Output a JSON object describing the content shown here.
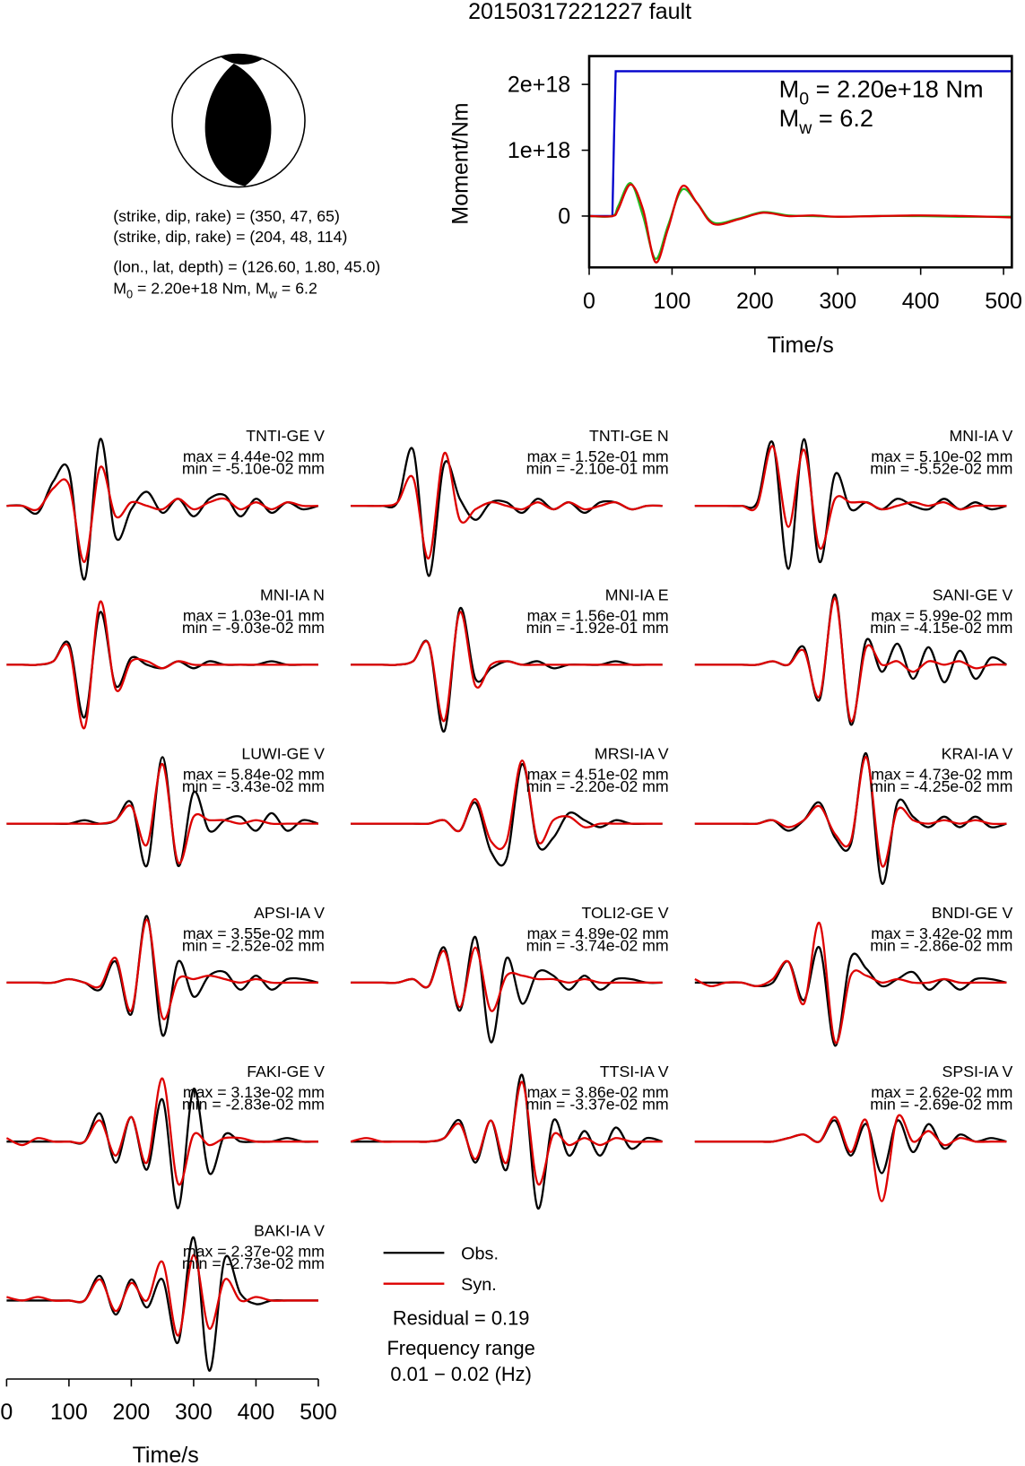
{
  "title": "20150317221227 fault",
  "mechanism_text": [
    "(strike, dip, rake) = (350, 47, 65)",
    "(strike, dip, rake) = (204, 48, 114)",
    "(lon., lat, depth) = (126.60, 1.80, 45.0)"
  ],
  "moment_text": [
    {
      "text": "M"
    },
    {
      "text": "0",
      "sub": true
    },
    {
      "text": " = 2.20e+18 Nm, M"
    },
    {
      "text": "w",
      "sub": true
    },
    {
      "text": " = 6.2"
    }
  ],
  "chart_data": [
    {
      "type": "line",
      "xlabel": "Time/s",
      "ylabel": "Moment/Nm",
      "xlim": [
        0,
        510
      ],
      "ylim": [
        -7.8e+17,
        2.43e+18
      ],
      "xticks": [
        0,
        100,
        200,
        300,
        400,
        500
      ],
      "yticks": [
        0,
        {
          "value": 1e+18,
          "label": "1e+18"
        },
        {
          "value": 2e+18,
          "label": "2e+18"
        }
      ],
      "annotations": [
        [
          {
            "text": "M"
          },
          {
            "text": "0",
            "sub": true
          },
          {
            "text": " = 2.20e+18 Nm"
          }
        ],
        [
          {
            "text": "M"
          },
          {
            "text": "w",
            "sub": true
          },
          {
            "text": " = 6.2"
          }
        ]
      ],
      "series": [
        {
          "color": "#0000cc",
          "x": [
            0,
            28,
            30,
            32,
            510
          ],
          "values": [
            0,
            0,
            1.2e+18,
            2.2e+18,
            2.2e+18
          ]
        },
        {
          "color": "#22bb22",
          "x": [
            0,
            28,
            35,
            50,
            65,
            80,
            95,
            112,
            130,
            150,
            180,
            210,
            240,
            270,
            300,
            350,
            400,
            450,
            510
          ],
          "values": [
            0,
            0,
            1.5e+17,
            5e+17,
            0,
            -6.5e+17,
            -1.5e+17,
            4e+17,
            2e+17,
            -1e+17,
            -4e+16,
            6e+16,
            1e+16,
            0,
            -1e+16,
            0,
            0,
            -1e+16,
            -1e+16
          ]
        },
        {
          "color": "#dd0000",
          "x": [
            0,
            28,
            35,
            50,
            65,
            80,
            95,
            112,
            130,
            150,
            180,
            210,
            240,
            270,
            300,
            350,
            400,
            450,
            510
          ],
          "values": [
            0,
            0,
            1e+17,
            4.8e+17,
            1e+17,
            -7e+17,
            -2e+17,
            4.5e+17,
            2e+17,
            -1.2e+17,
            -5e+16,
            5e+16,
            0,
            1e+16,
            -1e+16,
            0,
            1e+16,
            0,
            -2e+16
          ]
        }
      ]
    },
    {
      "type": "waveform",
      "xlabel": "Time/s",
      "xlim": [
        0,
        510
      ],
      "xticks": [
        0,
        100,
        200,
        300,
        400,
        500
      ],
      "x": [
        0,
        25,
        50,
        75,
        100,
        125,
        150,
        175,
        200,
        225,
        250,
        275,
        300,
        325,
        350,
        375,
        400,
        425,
        450,
        475,
        500
      ],
      "legend": [
        {
          "name": "Obs.",
          "color": "#000000"
        },
        {
          "name": "Syn.",
          "color": "#dd0000"
        }
      ],
      "residual": "Residual = 0.19",
      "frequency_range": [
        "Frequency range",
        "0.01 − 0.02 (Hz)"
      ],
      "panels": [
        {
          "title": "TNTI-GE V",
          "max": "max = 4.44e-02 mm",
          "min": "min = -5.10e-02 mm",
          "obs": [
            0,
            0,
            -0.1,
            0.35,
            0.5,
            -1.05,
            0.95,
            -0.45,
            -0.05,
            0.2,
            -0.1,
            0.1,
            -0.15,
            0.1,
            0.15,
            -0.15,
            0.1,
            -0.1,
            0.05,
            -0.05,
            0
          ],
          "syn": [
            0,
            0,
            -0.05,
            0.25,
            0.3,
            -0.8,
            0.55,
            -0.15,
            0.05,
            0,
            -0.05,
            0.1,
            -0.05,
            0.05,
            0.1,
            -0.05,
            0.05,
            -0.05,
            0.05,
            0,
            0
          ]
        },
        {
          "title": "TNTI-GE N",
          "max": "max = 1.52e-01 mm",
          "min": "min = -2.10e-01 mm",
          "obs": [
            0,
            0,
            0,
            0.05,
            0.8,
            -1.0,
            0.6,
            0.1,
            -0.2,
            0.05,
            0.05,
            -0.1,
            0.1,
            -0.05,
            0.05,
            -0.1,
            0.05,
            0.05,
            -0.05,
            0,
            0
          ],
          "syn": [
            0,
            0,
            0,
            0.05,
            0.4,
            -0.75,
            0.75,
            -0.2,
            -0.05,
            0.05,
            0,
            -0.05,
            0.05,
            -0.05,
            0.05,
            -0.05,
            0,
            0.05,
            -0.05,
            0,
            0
          ]
        },
        {
          "title": "MNI-IA V",
          "max": "max = 5.10e-02 mm",
          "min": "min = -5.52e-02 mm",
          "obs": [
            0,
            0,
            0,
            0,
            0.05,
            0.9,
            -0.9,
            0.95,
            -0.8,
            0.45,
            -0.05,
            0.05,
            -0.05,
            0.1,
            0,
            -0.05,
            0.1,
            -0.05,
            0.05,
            -0.05,
            0
          ],
          "syn": [
            0,
            0,
            0,
            0,
            0,
            0.85,
            -0.3,
            0.8,
            -0.6,
            0.1,
            0.05,
            0.05,
            -0.05,
            0,
            0.05,
            0,
            0.05,
            -0.05,
            0,
            0,
            0
          ]
        },
        {
          "title": "MNI-IA N",
          "max": "max = 1.03e-01 mm",
          "min": "min = -9.03e-02 mm",
          "obs": [
            0,
            0,
            0,
            0.05,
            0.3,
            -0.75,
            0.75,
            -0.3,
            0.1,
            0,
            -0.05,
            0.05,
            -0.05,
            0.05,
            0,
            0,
            0,
            0.05,
            0,
            0,
            0
          ],
          "syn": [
            0,
            0,
            0,
            0.05,
            0.25,
            -0.9,
            0.9,
            -0.35,
            0.05,
            0.05,
            -0.05,
            0.05,
            0,
            0,
            0,
            0,
            0,
            0,
            0,
            0,
            0
          ]
        },
        {
          "title": "MNI-IA E",
          "max": "max = 1.56e-01 mm",
          "min": "min = -1.92e-01 mm",
          "obs": [
            0,
            0,
            0,
            0,
            0.05,
            0.3,
            -0.95,
            0.8,
            -0.2,
            -0.05,
            0.05,
            0,
            0.05,
            -0.05,
            0,
            0,
            0,
            0.05,
            0,
            0,
            0
          ],
          "syn": [
            0,
            0,
            0,
            0,
            0.05,
            0.3,
            -0.8,
            0.75,
            -0.3,
            0,
            0.05,
            0,
            0,
            0,
            0,
            0,
            0,
            0,
            0,
            0,
            0
          ]
        },
        {
          "title": "SANI-GE V",
          "max": "max = 5.99e-02 mm",
          "min": "min = -4.15e-02 mm",
          "obs": [
            0,
            0,
            0,
            0,
            0,
            0.05,
            0,
            0.25,
            -0.5,
            1.0,
            -0.85,
            0.35,
            -0.1,
            0.3,
            -0.2,
            0.25,
            -0.25,
            0.2,
            -0.2,
            0.1,
            0
          ],
          "syn": [
            0,
            0,
            0,
            0,
            0,
            0.05,
            0,
            0.2,
            -0.45,
            0.95,
            -0.8,
            0.25,
            0,
            0.05,
            -0.1,
            0.05,
            0,
            0.05,
            -0.05,
            0,
            0
          ]
        },
        {
          "title": "LUWI-GE V",
          "max": "max = 5.84e-02 mm",
          "min": "min = -3.43e-02 mm",
          "obs": [
            0,
            0,
            0,
            0,
            0,
            0.05,
            0,
            0.05,
            0.3,
            -0.6,
            0.95,
            -0.6,
            0.45,
            -0.1,
            0.05,
            0.1,
            -0.1,
            0.15,
            -0.1,
            0.05,
            0
          ],
          "syn": [
            0,
            0,
            0,
            0,
            0,
            0,
            0,
            0.05,
            0.25,
            -0.3,
            0.85,
            -0.55,
            0.1,
            0.05,
            0.05,
            0,
            0.05,
            0,
            0,
            0,
            0
          ]
        },
        {
          "title": "MRSI-IA V",
          "max": "max = 4.51e-02 mm",
          "min": "min = -2.20e-02 mm",
          "obs": [
            0,
            0,
            0,
            0,
            0,
            0,
            0.05,
            -0.1,
            0.3,
            -0.4,
            -0.5,
            0.85,
            -0.3,
            -0.2,
            0.15,
            0.05,
            -0.05,
            0.05,
            0,
            0,
            0
          ],
          "syn": [
            0,
            0,
            0,
            0,
            0,
            0,
            0.05,
            -0.1,
            0.35,
            -0.25,
            -0.25,
            0.9,
            -0.25,
            0.05,
            0.1,
            -0.05,
            0,
            0,
            0,
            0,
            0
          ]
        },
        {
          "title": "KRAI-IA V",
          "max": "max = 4.73e-02 mm",
          "min": "min = -4.25e-02 mm",
          "obs": [
            0,
            0,
            0,
            0,
            0,
            0.05,
            -0.1,
            0.05,
            0.3,
            -0.2,
            -0.3,
            1.0,
            -0.85,
            0.3,
            0.1,
            -0.05,
            0.1,
            -0.05,
            0.1,
            -0.05,
            0
          ],
          "syn": [
            0,
            0,
            0,
            0,
            0,
            0.05,
            -0.05,
            0.05,
            0.25,
            -0.15,
            -0.25,
            0.95,
            -0.6,
            0.2,
            0.05,
            0,
            0.05,
            0,
            0.05,
            0,
            0
          ]
        },
        {
          "title": "APSI-IA V",
          "max": "max = 3.55e-02 mm",
          "min": "min = -2.52e-02 mm",
          "obs": [
            0,
            0,
            0,
            0,
            0.05,
            0,
            -0.1,
            0.3,
            -0.45,
            0.95,
            -0.75,
            0.3,
            -0.2,
            0.1,
            0.15,
            -0.1,
            0.1,
            -0.1,
            0.05,
            0.05,
            0
          ],
          "syn": [
            0,
            0,
            0,
            0,
            0.05,
            0,
            -0.05,
            0.35,
            -0.4,
            0.9,
            -0.5,
            0.05,
            0.05,
            0.1,
            0.05,
            0,
            0.05,
            0,
            0,
            0,
            0
          ]
        },
        {
          "title": "TOLI2-GE V",
          "max": "max = 4.89e-02 mm",
          "min": "min = -3.74e-02 mm",
          "obs": [
            0,
            0,
            0,
            0,
            0.05,
            -0.05,
            0.5,
            -0.4,
            0.65,
            -0.85,
            0.35,
            -0.3,
            0.15,
            0.1,
            -0.1,
            0.1,
            -0.1,
            0.05,
            0.05,
            0,
            0
          ],
          "syn": [
            0,
            0,
            0,
            0,
            0.05,
            -0.05,
            0.45,
            -0.35,
            0.5,
            -0.4,
            0.1,
            0.1,
            0.05,
            0.05,
            0,
            0.05,
            0,
            0,
            0,
            0,
            0
          ]
        },
        {
          "title": "BNDI-GE V",
          "max": "max = 3.42e-02 mm",
          "min": "min = -2.86e-02 mm",
          "obs": [
            0,
            0,
            0,
            0,
            -0.05,
            0,
            0.3,
            -0.25,
            0.5,
            -0.9,
            0.35,
            0.2,
            -0.05,
            0.05,
            0.15,
            -0.1,
            0.05,
            -0.1,
            0.05,
            0.05,
            0
          ],
          "syn": [
            0.05,
            -0.05,
            0,
            0,
            -0.05,
            0.05,
            0.3,
            -0.3,
            0.85,
            -0.85,
            0.1,
            0.1,
            0,
            0.05,
            0,
            0,
            0.05,
            0,
            0,
            0,
            0
          ]
        },
        {
          "title": "FAKI-GE V",
          "max": "max = 3.13e-02 mm",
          "min": "min = -2.83e-02 mm",
          "obs": [
            0,
            0,
            0,
            0,
            0,
            0,
            0.4,
            -0.3,
            0.35,
            -0.4,
            0.6,
            -0.95,
            0.75,
            -0.45,
            0.1,
            0,
            0,
            0,
            0.05,
            0,
            0
          ],
          "syn": [
            0.05,
            -0.05,
            0.05,
            0,
            0,
            0,
            0.3,
            -0.2,
            0.35,
            -0.3,
            0.9,
            -0.6,
            0.1,
            -0.05,
            0.05,
            0.05,
            0,
            0,
            0,
            0,
            0
          ]
        },
        {
          "title": "TTSI-IA V",
          "max": "max = 3.86e-02 mm",
          "min": "min = -3.37e-02 mm",
          "obs": [
            0,
            0,
            0,
            0,
            0,
            0,
            0.05,
            0.3,
            -0.3,
            0.3,
            -0.4,
            0.95,
            -0.95,
            0.3,
            -0.2,
            0.15,
            -0.2,
            0.2,
            -0.1,
            0.05,
            0
          ],
          "syn": [
            0,
            0.05,
            0,
            0,
            0,
            0,
            0.05,
            0.25,
            -0.25,
            0.3,
            -0.3,
            0.85,
            -0.6,
            0.1,
            -0.05,
            0.05,
            -0.05,
            0.05,
            0,
            0,
            0
          ]
        },
        {
          "title": "SPSI-IA V",
          "max": "max = 2.62e-02 mm",
          "min": "min = -2.69e-02 mm",
          "obs": [
            0,
            0,
            0,
            0,
            0,
            0,
            0.05,
            0.1,
            0,
            0.3,
            -0.2,
            0.25,
            -0.45,
            0.3,
            -0.15,
            0.25,
            -0.1,
            0.1,
            0,
            0.05,
            0
          ],
          "syn": [
            0,
            0,
            0,
            0,
            0,
            0,
            0.05,
            0.1,
            0,
            0.35,
            -0.15,
            0.3,
            -0.85,
            0.35,
            0,
            0.15,
            -0.05,
            0.05,
            0,
            0,
            0
          ]
        },
        {
          "title": "BAKI-IA V",
          "max": "max = 2.37e-02 mm",
          "min": "min = -2.73e-02 mm",
          "obs": [
            0,
            0,
            0,
            0,
            0,
            0,
            0.35,
            -0.2,
            0.3,
            -0.1,
            0.3,
            -0.6,
            0.9,
            -1.0,
            0.6,
            0.1,
            -0.05,
            0,
            0,
            0,
            0
          ],
          "syn": [
            0.05,
            0,
            0.05,
            0,
            0,
            0,
            0.3,
            -0.15,
            0.25,
            0,
            0.55,
            -0.5,
            0.65,
            -0.4,
            0.3,
            0,
            0.05,
            0,
            0,
            0,
            0
          ]
        }
      ]
    }
  ]
}
